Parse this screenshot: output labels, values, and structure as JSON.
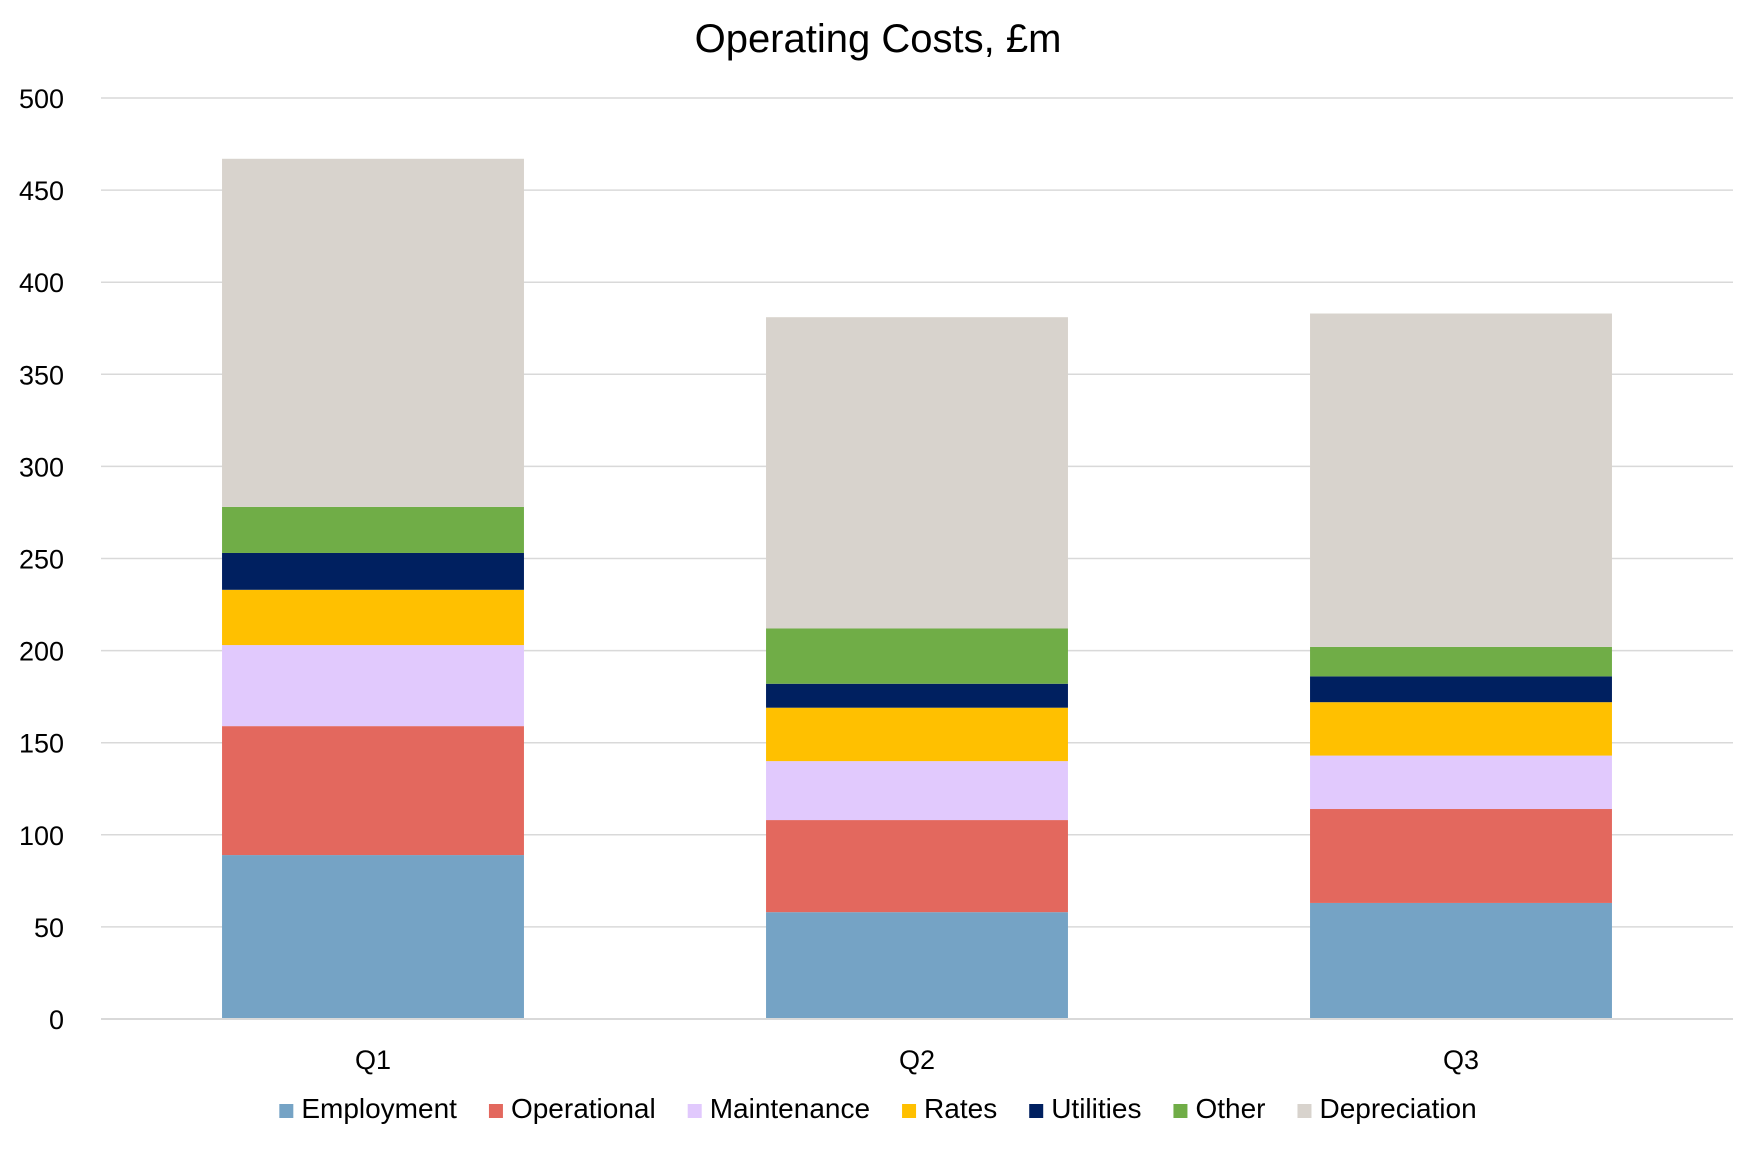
{
  "chart_data": {
    "type": "bar",
    "stacked": true,
    "title": "Operating Costs, £m",
    "xlabel": "",
    "ylabel": "",
    "categories": [
      "Q1",
      "Q2",
      "Q3"
    ],
    "ylim": [
      0,
      500
    ],
    "yticks": [
      0,
      50,
      100,
      150,
      200,
      250,
      300,
      350,
      400,
      450,
      500
    ],
    "grid": true,
    "legend_position": "bottom",
    "series": [
      {
        "name": "Employment",
        "color": "#75A3C5",
        "values": [
          89,
          58,
          63
        ]
      },
      {
        "name": "Operational",
        "color": "#E3685E",
        "values": [
          70,
          50,
          51
        ]
      },
      {
        "name": "Maintenance",
        "color": "#E1C9FD",
        "values": [
          44,
          32,
          29
        ]
      },
      {
        "name": "Rates",
        "color": "#FFC000",
        "values": [
          30,
          29,
          29
        ]
      },
      {
        "name": "Utilities",
        "color": "#002060",
        "values": [
          20,
          13,
          14
        ]
      },
      {
        "name": "Other",
        "color": "#70AD47",
        "values": [
          25,
          30,
          16
        ]
      },
      {
        "name": "Depreciation",
        "color": "#D8D3CD",
        "values": [
          189,
          169,
          181
        ]
      }
    ]
  }
}
